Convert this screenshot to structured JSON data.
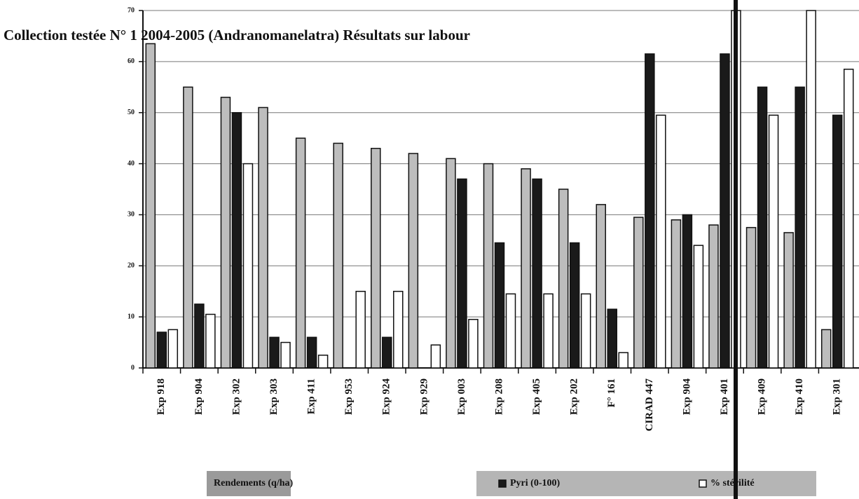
{
  "chart_data": {
    "type": "bar",
    "title": "Collection testée N° 1 2004-2005 (Andranomanelatra) Résultats sur labour",
    "categories": [
      "Exp 918",
      "Exp 904",
      "Exp 302",
      "Exp 303",
      "Exp 411",
      "Exp 953",
      "Exp 924",
      "Exp 929",
      "Exp 003",
      "Exp 208",
      "Exp 405",
      "Exp 202",
      "F° 161",
      "CIRAD 447",
      "Exp 904",
      "Exp 401",
      "Exp 409",
      "Exp 410",
      "Exp 301"
    ],
    "series": [
      {
        "name": "Rendements (q/ha)",
        "color": "#bdbdbd",
        "values": [
          63.5,
          55,
          53,
          51,
          45,
          44,
          43,
          42,
          41,
          40,
          39,
          35,
          32,
          29.5,
          29,
          28,
          27.5,
          26.5,
          7.5
        ]
      },
      {
        "name": "Pyri (0-100)",
        "color": "#1a1a1a",
        "values": [
          7,
          12.5,
          50,
          6,
          6,
          0,
          6,
          0,
          37,
          24.5,
          37,
          24.5,
          11.5,
          61.5,
          30,
          61.5,
          55,
          55,
          49.5
        ]
      },
      {
        "name": "% stérilité",
        "color": "#ffffff",
        "values": [
          7.5,
          10.5,
          40,
          5,
          2.5,
          15,
          15,
          4.5,
          9.5,
          14.5,
          14.5,
          14.5,
          3,
          49.5,
          24,
          70,
          49.5,
          70,
          58.5
        ]
      }
    ],
    "ylim": [
      0,
      70
    ],
    "yticks": [
      0,
      10,
      20,
      30,
      40,
      50,
      60,
      70
    ],
    "grid": true
  }
}
